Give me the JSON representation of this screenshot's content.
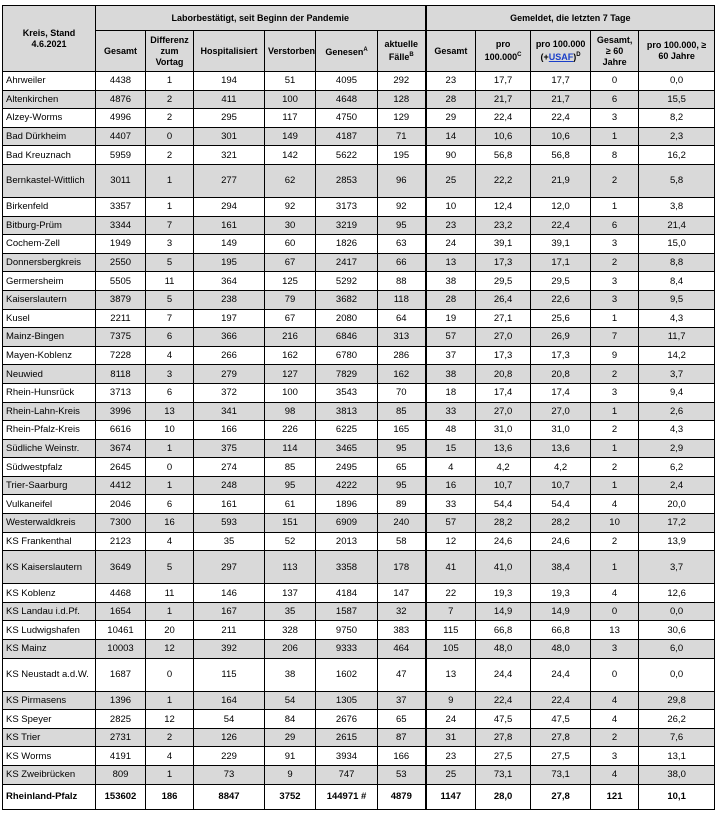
{
  "header": {
    "kreis": "Kreis, Stand 4.6.2021",
    "group1": "Laborbestätigt, seit Beginn der Pandemie",
    "group2": "Gemeldet, die letzten 7 Tage",
    "columns": {
      "gesamt": "Gesamt",
      "differenz": "Differenz zum Vortag",
      "hospitalisiert": "Hospitalisiert",
      "verstorben": "Verstorben",
      "genesen": "Genesen",
      "genesen_sup": "A",
      "aktuelle": "aktuelle Fälle",
      "aktuelle_sup": "B",
      "gesamt7": "Gesamt",
      "pro100": "pro 100.000",
      "pro100_sup": "C",
      "pro100usaf_pre": "pro 100.000 (+",
      "pro100usaf_link": "USAF",
      "pro100usaf_post": ")",
      "pro100usaf_sup": "D",
      "gesamt60": "Gesamt, ≥ 60 Jahre",
      "pro60": "pro 100.000, ≥ 60 Jahre"
    }
  },
  "rows": [
    [
      "Ahrweiler",
      "4438",
      "1",
      "194",
      "51",
      "4095",
      "292",
      "23",
      "17,7",
      "17,7",
      "0",
      "0,0"
    ],
    [
      "Altenkirchen",
      "4876",
      "2",
      "411",
      "100",
      "4648",
      "128",
      "28",
      "21,7",
      "21,7",
      "6",
      "15,5"
    ],
    [
      "Alzey-Worms",
      "4996",
      "2",
      "295",
      "117",
      "4750",
      "129",
      "29",
      "22,4",
      "22,4",
      "3",
      "8,2"
    ],
    [
      "Bad Dürkheim",
      "4407",
      "0",
      "301",
      "149",
      "4187",
      "71",
      "14",
      "10,6",
      "10,6",
      "1",
      "2,3"
    ],
    [
      "Bad Kreuznach",
      "5959",
      "2",
      "321",
      "142",
      "5622",
      "195",
      "90",
      "56,8",
      "56,8",
      "8",
      "16,2"
    ],
    [
      "Bernkastel-Wittlich",
      "3011",
      "1",
      "277",
      "62",
      "2853",
      "96",
      "25",
      "22,2",
      "21,9",
      "2",
      "5,8"
    ],
    [
      "Birkenfeld",
      "3357",
      "1",
      "294",
      "92",
      "3173",
      "92",
      "10",
      "12,4",
      "12,0",
      "1",
      "3,8"
    ],
    [
      "Bitburg-Prüm",
      "3344",
      "7",
      "161",
      "30",
      "3219",
      "95",
      "23",
      "23,2",
      "22,4",
      "6",
      "21,4"
    ],
    [
      "Cochem-Zell",
      "1949",
      "3",
      "149",
      "60",
      "1826",
      "63",
      "24",
      "39,1",
      "39,1",
      "3",
      "15,0"
    ],
    [
      "Donnersbergkreis",
      "2550",
      "5",
      "195",
      "67",
      "2417",
      "66",
      "13",
      "17,3",
      "17,1",
      "2",
      "8,8"
    ],
    [
      "Germersheim",
      "5505",
      "11",
      "364",
      "125",
      "5292",
      "88",
      "38",
      "29,5",
      "29,5",
      "3",
      "8,4"
    ],
    [
      "Kaiserslautern",
      "3879",
      "5",
      "238",
      "79",
      "3682",
      "118",
      "28",
      "26,4",
      "22,6",
      "3",
      "9,5"
    ],
    [
      "Kusel",
      "2211",
      "7",
      "197",
      "67",
      "2080",
      "64",
      "19",
      "27,1",
      "25,6",
      "1",
      "4,3"
    ],
    [
      "Mainz-Bingen",
      "7375",
      "6",
      "366",
      "216",
      "6846",
      "313",
      "57",
      "27,0",
      "26,9",
      "7",
      "11,7"
    ],
    [
      "Mayen-Koblenz",
      "7228",
      "4",
      "266",
      "162",
      "6780",
      "286",
      "37",
      "17,3",
      "17,3",
      "9",
      "14,2"
    ],
    [
      "Neuwied",
      "8118",
      "3",
      "279",
      "127",
      "7829",
      "162",
      "38",
      "20,8",
      "20,8",
      "2",
      "3,7"
    ],
    [
      "Rhein-Hunsrück",
      "3713",
      "6",
      "372",
      "100",
      "3543",
      "70",
      "18",
      "17,4",
      "17,4",
      "3",
      "9,4"
    ],
    [
      "Rhein-Lahn-Kreis",
      "3996",
      "13",
      "341",
      "98",
      "3813",
      "85",
      "33",
      "27,0",
      "27,0",
      "1",
      "2,6"
    ],
    [
      "Rhein-Pfalz-Kreis",
      "6616",
      "10",
      "166",
      "226",
      "6225",
      "165",
      "48",
      "31,0",
      "31,0",
      "2",
      "4,3"
    ],
    [
      "Südliche Weinstr.",
      "3674",
      "1",
      "375",
      "114",
      "3465",
      "95",
      "15",
      "13,6",
      "13,6",
      "1",
      "2,9"
    ],
    [
      "Südwestpfalz",
      "2645",
      "0",
      "274",
      "85",
      "2495",
      "65",
      "4",
      "4,2",
      "4,2",
      "2",
      "6,2"
    ],
    [
      "Trier-Saarburg",
      "4412",
      "1",
      "248",
      "95",
      "4222",
      "95",
      "16",
      "10,7",
      "10,7",
      "1",
      "2,4"
    ],
    [
      "Vulkaneifel",
      "2046",
      "6",
      "161",
      "61",
      "1896",
      "89",
      "33",
      "54,4",
      "54,4",
      "4",
      "20,0"
    ],
    [
      "Westerwaldkreis",
      "7300",
      "16",
      "593",
      "151",
      "6909",
      "240",
      "57",
      "28,2",
      "28,2",
      "10",
      "17,2"
    ],
    [
      "KS Frankenthal",
      "2123",
      "4",
      "35",
      "52",
      "2013",
      "58",
      "12",
      "24,6",
      "24,6",
      "2",
      "13,9"
    ],
    [
      "KS Kaiserslautern",
      "3649",
      "5",
      "297",
      "113",
      "3358",
      "178",
      "41",
      "41,0",
      "38,4",
      "1",
      "3,7"
    ],
    [
      "KS Koblenz",
      "4468",
      "11",
      "146",
      "137",
      "4184",
      "147",
      "22",
      "19,3",
      "19,3",
      "4",
      "12,6"
    ],
    [
      "KS Landau i.d.Pf.",
      "1654",
      "1",
      "167",
      "35",
      "1587",
      "32",
      "7",
      "14,9",
      "14,9",
      "0",
      "0,0"
    ],
    [
      "KS Ludwigshafen",
      "10461",
      "20",
      "211",
      "328",
      "9750",
      "383",
      "115",
      "66,8",
      "66,8",
      "13",
      "30,6"
    ],
    [
      "KS Mainz",
      "10003",
      "12",
      "392",
      "206",
      "9333",
      "464",
      "105",
      "48,0",
      "48,0",
      "3",
      "6,0"
    ],
    [
      "KS Neustadt a.d.W.",
      "1687",
      "0",
      "115",
      "38",
      "1602",
      "47",
      "13",
      "24,4",
      "24,4",
      "0",
      "0,0"
    ],
    [
      "KS Pirmasens",
      "1396",
      "1",
      "164",
      "54",
      "1305",
      "37",
      "9",
      "22,4",
      "22,4",
      "4",
      "29,8"
    ],
    [
      "KS Speyer",
      "2825",
      "12",
      "54",
      "84",
      "2676",
      "65",
      "24",
      "47,5",
      "47,5",
      "4",
      "26,2"
    ],
    [
      "KS Trier",
      "2731",
      "2",
      "126",
      "29",
      "2615",
      "87",
      "31",
      "27,8",
      "27,8",
      "2",
      "7,6"
    ],
    [
      "KS Worms",
      "4191",
      "4",
      "229",
      "91",
      "3934",
      "166",
      "23",
      "27,5",
      "27,5",
      "3",
      "13,1"
    ],
    [
      "KS Zweibrücken",
      "809",
      "1",
      "73",
      "9",
      "747",
      "53",
      "25",
      "73,1",
      "73,1",
      "4",
      "38,0"
    ]
  ],
  "total": [
    "Rheinland-Pfalz",
    "153602",
    "186",
    "8847",
    "3752",
    "144971 #",
    "4879",
    "1147",
    "28,0",
    "27,8",
    "121",
    "10,1"
  ],
  "colors": {
    "header_bg": "#d9d9d9",
    "alt_row_bg": "#d9d9d9",
    "link": "#1a3fc9"
  }
}
